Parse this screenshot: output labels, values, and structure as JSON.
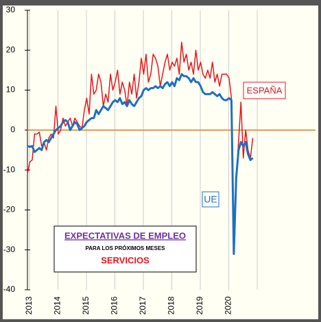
{
  "chart_data": {
    "type": "line",
    "categories": [
      "2013",
      null,
      null,
      null,
      null,
      null,
      null,
      null,
      null,
      null,
      null,
      null,
      "2014",
      null,
      null,
      null,
      null,
      null,
      null,
      null,
      null,
      null,
      null,
      null,
      "2015",
      null,
      null,
      null,
      null,
      null,
      null,
      null,
      null,
      null,
      null,
      null,
      "2016",
      null,
      null,
      null,
      null,
      null,
      null,
      null,
      null,
      null,
      null,
      null,
      "2017",
      null,
      null,
      null,
      null,
      null,
      null,
      null,
      null,
      null,
      null,
      null,
      "2018",
      null,
      null,
      null,
      null,
      null,
      null,
      null,
      null,
      null,
      null,
      null,
      "2019",
      null,
      null,
      null,
      null,
      null,
      null,
      null,
      null,
      null,
      null,
      null,
      "2020",
      null,
      null,
      null,
      null,
      null,
      null,
      null,
      null,
      null,
      null,
      null
    ],
    "series": [
      {
        "name": "UE",
        "color": "#1f6fc0",
        "values": [
          -4,
          -4.2,
          -4,
          -5.5,
          -5,
          -4.5,
          -5,
          -3,
          -2.5,
          -3,
          -2,
          -1,
          0,
          0.5,
          1,
          2,
          2.5,
          2,
          0,
          1,
          2,
          1.5,
          0,
          0.5,
          1,
          2,
          2.5,
          3,
          3,
          5,
          4,
          5,
          6,
          5.5,
          5,
          6,
          7,
          7.5,
          7,
          8,
          6.5,
          7,
          6,
          7.5,
          6.5,
          6,
          7,
          8,
          8.5,
          10,
          10.5,
          10,
          10.5,
          10.5,
          11,
          10.5,
          11,
          10.5,
          11.5,
          12,
          11,
          12,
          11,
          13,
          12.5,
          14,
          13.5,
          13.5,
          13,
          12,
          13,
          12,
          12,
          11,
          9.5,
          9,
          9,
          9,
          9.5,
          9,
          8.5,
          9,
          8,
          7.5,
          7.5,
          8,
          7.5,
          -31,
          -12,
          -5,
          -3,
          -4,
          -3,
          -6,
          -7.5,
          -7
        ]
      },
      {
        "name": "ESPAÑA",
        "color": "#e8141c",
        "values": [
          -11,
          -8,
          -7.5,
          -1,
          -1,
          -0.5,
          -4,
          -3,
          -5,
          -2,
          -1,
          -2,
          6,
          -1,
          0,
          3,
          1,
          2,
          3,
          1,
          3,
          2,
          1,
          0.5,
          5,
          8,
          4,
          14,
          9,
          10,
          14,
          12,
          6,
          9,
          7,
          14,
          10,
          12,
          15,
          9,
          12,
          10,
          6,
          12,
          9,
          14,
          8,
          12,
          18,
          14,
          19,
          12,
          14,
          19,
          18,
          16,
          11,
          14,
          17,
          19,
          15,
          17,
          16,
          18,
          14,
          22,
          17,
          19,
          15,
          17,
          14,
          20,
          15,
          17,
          14,
          13,
          15,
          13,
          17,
          12,
          14,
          11,
          14,
          14,
          14,
          13,
          8,
          -30,
          -12,
          -3,
          7,
          -7,
          0,
          -5,
          -7,
          -2
        ]
      }
    ],
    "ylim": [
      -40,
      30
    ],
    "yticks": [
      -40,
      -30,
      -20,
      -10,
      0,
      10,
      20,
      30
    ],
    "zero_line_color": "#e07b20",
    "title_box": {
      "line1": "EXPECTATIVAS DE EMPLEO",
      "line2": "PARA LOS PRÓXIMOS MESES",
      "line3": "SERVICIOS"
    }
  }
}
